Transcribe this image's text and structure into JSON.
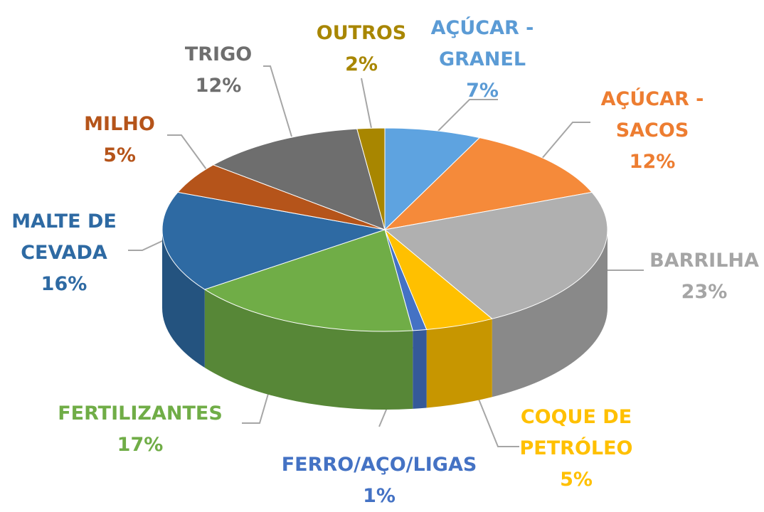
{
  "chart_data": {
    "type": "pie",
    "categories": [
      "AÇÚCAR - GRANEL",
      "AÇÚCAR - SACOS",
      "BARRILHA",
      "COQUE DE PETRÓLEO",
      "FERRO/AÇO/LIGAS",
      "FERTILIZANTES",
      "MALTE DE CEVADA",
      "MILHO",
      "TRIGO",
      "OUTROS"
    ],
    "values": [
      7,
      12,
      23,
      5,
      1,
      17,
      16,
      5,
      12,
      2
    ],
    "value_labels": [
      "7%",
      "12%",
      "23%",
      "5%",
      "1%",
      "17%",
      "16%",
      "5%",
      "12%",
      "2%"
    ],
    "colors": [
      "#5ea3e0",
      "#f58a3a",
      "#b0b0b0",
      "#ffc000",
      "#4472c4",
      "#70ad47",
      "#2e6aa3",
      "#b5541a",
      "#6e6e6e",
      "#a88600"
    ],
    "label_colors": [
      "#5b9bd5",
      "#ed7d31",
      "#a5a5a5",
      "#ffc000",
      "#4472c4",
      "#70ad47",
      "#2e6aa3",
      "#b5541a",
      "#6e6e6e",
      "#a88600"
    ]
  }
}
